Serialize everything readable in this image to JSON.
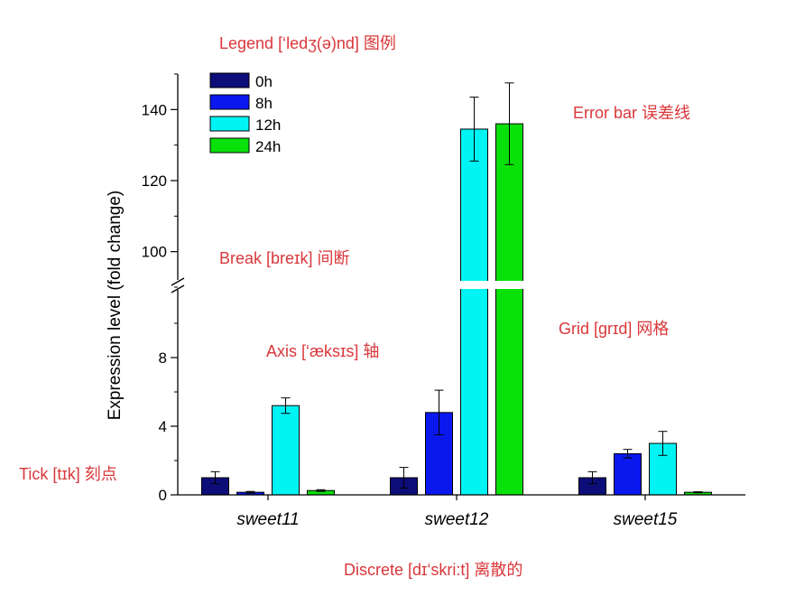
{
  "chart_data": {
    "type": "bar",
    "categories": [
      "sweet11",
      "sweet12",
      "sweet15"
    ],
    "series": [
      {
        "name": "0h",
        "color": "#0d0d7a",
        "values": [
          1.0,
          1.0,
          1.0
        ],
        "errors": [
          0.35,
          0.6,
          0.35
        ]
      },
      {
        "name": "8h",
        "color": "#0a18ee",
        "values": [
          0.15,
          4.8,
          2.4
        ],
        "errors": [
          0.05,
          1.3,
          0.25
        ]
      },
      {
        "name": "12h",
        "color": "#00f4f4",
        "values": [
          5.2,
          134.5,
          3.0
        ],
        "errors": [
          0.45,
          9.0,
          0.7
        ]
      },
      {
        "name": "24h",
        "color": "#0ae00a",
        "values": [
          0.25,
          136.0,
          0.15
        ],
        "errors": [
          0.05,
          11.5,
          0.03
        ]
      }
    ],
    "ylabel": "Expression level (fold change)",
    "xlabel": "",
    "axis_break": {
      "lower_range": [
        0,
        12
      ],
      "upper_range": [
        90,
        150
      ]
    },
    "lower_ticks": [
      0,
      4,
      8
    ],
    "upper_ticks": [
      100,
      120,
      140
    ],
    "legend_position": "top-left",
    "grid": false
  },
  "annotations": {
    "legend": "Legend  [‘ledʒ(ə)nd] 图例",
    "error_bar": "Error bar 误差线",
    "break": "Break [breɪk] 间断",
    "grid": "Grid [grɪd] 网格",
    "axis": "Axis [‘æksɪs] 轴",
    "tick": "Tick [tɪk] 刻点",
    "discrete": "Discrete [dɪ‘skri:t] 离散的"
  },
  "colors": {
    "annotation": "#d9373a",
    "axis": "#000000"
  }
}
